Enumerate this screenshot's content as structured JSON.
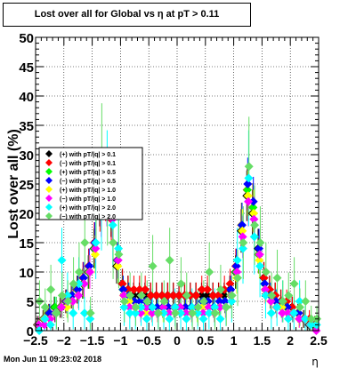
{
  "chart_data": {
    "type": "scatter",
    "title": "Lost over all for Global vs  η at pT > 0.11",
    "xlabel": "η",
    "ylabel": "Lost over all (%)",
    "xlim": [
      -2.5,
      2.5
    ],
    "ylim": [
      0,
      50
    ],
    "x_ticks": [
      "−2.5",
      "−2",
      "−1.5",
      "−1",
      "−0.5",
      "0",
      "0.5",
      "1",
      "1.5",
      "2",
      "2.5"
    ],
    "y_ticks": [
      "0",
      "5",
      "10",
      "15",
      "20",
      "25",
      "30",
      "35",
      "40",
      "45",
      "50"
    ],
    "grid": true,
    "legend_position": "left",
    "series": [
      {
        "name": "(+) with pT/|q| > 0.1",
        "color": "#000000",
        "x": [
          -2.45,
          -2.35,
          -2.25,
          -2.15,
          -2.05,
          -1.95,
          -1.85,
          -1.75,
          -1.65,
          -1.55,
          -1.45,
          -1.35,
          -1.25,
          -1.15,
          -1.05,
          -0.95,
          -0.85,
          -0.75,
          -0.65,
          -0.55,
          -0.45,
          -0.35,
          -0.25,
          -0.15,
          -0.05,
          0.05,
          0.15,
          0.25,
          0.35,
          0.45,
          0.55,
          0.65,
          0.75,
          0.85,
          0.95,
          1.05,
          1.15,
          1.25,
          1.35,
          1.45,
          1.55,
          1.65,
          1.75,
          1.85,
          1.95,
          2.05,
          2.15,
          2.25,
          2.35,
          2.45
        ],
        "y": [
          1,
          2,
          3,
          4,
          4,
          5,
          6,
          7,
          8,
          10,
          14,
          22,
          24,
          20,
          11,
          8,
          7,
          6,
          6,
          6,
          6,
          6,
          6,
          6,
          6,
          6,
          6,
          6,
          6,
          6,
          6,
          6,
          6,
          6,
          7,
          10,
          17,
          23,
          20,
          14,
          9,
          7,
          6,
          5,
          4,
          4,
          3,
          2,
          1,
          1
        ]
      },
      {
        "name": "(−) with pT/|q| > 0.1",
        "color": "#ff0000",
        "x": [
          -2.45,
          -2.35,
          -2.25,
          -2.15,
          -2.05,
          -1.95,
          -1.85,
          -1.75,
          -1.65,
          -1.55,
          -1.45,
          -1.35,
          -1.25,
          -1.15,
          -1.05,
          -0.95,
          -0.85,
          -0.75,
          -0.65,
          -0.55,
          -0.45,
          -0.35,
          -0.25,
          -0.15,
          -0.05,
          0.05,
          0.15,
          0.25,
          0.35,
          0.45,
          0.55,
          0.65,
          0.75,
          0.85,
          0.95,
          1.05,
          1.15,
          1.25,
          1.35,
          1.45,
          1.55,
          1.65,
          1.75,
          1.85,
          1.95,
          2.05,
          2.15,
          2.25,
          2.35,
          2.45
        ],
        "y": [
          1,
          2,
          3,
          3,
          4,
          5,
          6,
          7,
          9,
          11,
          15,
          21,
          23,
          19,
          12,
          8,
          7,
          7,
          7,
          7,
          6,
          6,
          6,
          6,
          6,
          6,
          6,
          6,
          6,
          7,
          7,
          6,
          6,
          7,
          8,
          11,
          18,
          24,
          21,
          13,
          9,
          7,
          6,
          5,
          5,
          4,
          3,
          2,
          2,
          1
        ]
      },
      {
        "name": "(+) with pT/|q| > 0.5",
        "color": "#00ff00",
        "x": [
          -2.45,
          -2.35,
          -2.25,
          -2.15,
          -2.05,
          -1.95,
          -1.85,
          -1.75,
          -1.65,
          -1.55,
          -1.45,
          -1.35,
          -1.25,
          -1.15,
          -1.05,
          -0.95,
          -0.85,
          -0.75,
          -0.65,
          -0.55,
          -0.45,
          -0.35,
          -0.25,
          -0.15,
          -0.05,
          0.05,
          0.15,
          0.25,
          0.35,
          0.45,
          0.55,
          0.65,
          0.75,
          0.85,
          0.95,
          1.05,
          1.15,
          1.25,
          1.35,
          1.45,
          1.55,
          1.65,
          1.75,
          1.85,
          1.95,
          2.05,
          2.15,
          2.25,
          2.35,
          2.45
        ],
        "y": [
          1,
          2,
          3,
          4,
          4,
          5,
          6,
          7,
          8,
          10,
          14,
          23,
          25,
          21,
          12,
          7,
          6,
          5,
          5,
          4,
          4,
          4,
          4,
          4,
          4,
          4,
          4,
          4,
          4,
          5,
          5,
          4,
          4,
          5,
          6,
          10,
          18,
          24,
          21,
          13,
          8,
          6,
          5,
          4,
          4,
          3,
          3,
          2,
          1,
          1
        ]
      },
      {
        "name": "(−) with pT/|q| > 0.5",
        "color": "#0000ff",
        "x": [
          -2.45,
          -2.35,
          -2.25,
          -2.15,
          -2.05,
          -1.95,
          -1.85,
          -1.75,
          -1.65,
          -1.55,
          -1.45,
          -1.35,
          -1.25,
          -1.15,
          -1.05,
          -0.95,
          -0.85,
          -0.75,
          -0.65,
          -0.55,
          -0.45,
          -0.35,
          -0.25,
          -0.15,
          -0.05,
          0.05,
          0.15,
          0.25,
          0.35,
          0.45,
          0.55,
          0.65,
          0.75,
          0.85,
          0.95,
          1.05,
          1.15,
          1.25,
          1.35,
          1.45,
          1.55,
          1.65,
          1.75,
          1.85,
          1.95,
          2.05,
          2.15,
          2.25,
          2.35,
          2.45
        ],
        "y": [
          1,
          2,
          3,
          3,
          4,
          5,
          6,
          7,
          9,
          11,
          15,
          22,
          24,
          20,
          12,
          7,
          6,
          5,
          5,
          5,
          4,
          4,
          4,
          4,
          4,
          4,
          4,
          4,
          4,
          5,
          5,
          4,
          5,
          5,
          7,
          11,
          18,
          25,
          22,
          14,
          8,
          6,
          5,
          4,
          4,
          3,
          3,
          2,
          1,
          1
        ]
      },
      {
        "name": "(+) with pT/|q| > 1.0",
        "color": "#ffff00",
        "x": [
          -2.45,
          -2.35,
          -2.25,
          -2.15,
          -2.05,
          -1.95,
          -1.85,
          -1.75,
          -1.65,
          -1.55,
          -1.45,
          -1.35,
          -1.25,
          -1.15,
          -1.05,
          -0.95,
          -0.85,
          -0.75,
          -0.65,
          -0.55,
          -0.45,
          -0.35,
          -0.25,
          -0.15,
          -0.05,
          0.05,
          0.15,
          0.25,
          0.35,
          0.45,
          0.55,
          0.65,
          0.75,
          0.85,
          0.95,
          1.05,
          1.15,
          1.25,
          1.35,
          1.45,
          1.55,
          1.65,
          1.75,
          1.85,
          1.95,
          2.05,
          2.15,
          2.25,
          2.35,
          2.45
        ],
        "y": [
          1,
          2,
          2,
          3,
          4,
          4,
          5,
          6,
          8,
          10,
          13,
          21,
          24,
          20,
          11,
          6,
          5,
          4,
          4,
          3,
          3,
          3,
          3,
          3,
          4,
          4,
          3,
          3,
          3,
          4,
          4,
          3,
          4,
          4,
          6,
          9,
          17,
          23,
          20,
          12,
          7,
          5,
          4,
          4,
          3,
          3,
          2,
          2,
          1,
          1
        ]
      },
      {
        "name": "(−) with pT/|q| > 1.0",
        "color": "#ff00ff",
        "x": [
          -2.45,
          -2.35,
          -2.25,
          -2.15,
          -2.05,
          -1.95,
          -1.85,
          -1.75,
          -1.65,
          -1.55,
          -1.45,
          -1.35,
          -1.25,
          -1.15,
          -1.05,
          -0.95,
          -0.85,
          -0.75,
          -0.65,
          -0.55,
          -0.45,
          -0.35,
          -0.25,
          -0.15,
          -0.05,
          0.05,
          0.15,
          0.25,
          0.35,
          0.45,
          0.55,
          0.65,
          0.75,
          0.85,
          0.95,
          1.05,
          1.15,
          1.25,
          1.35,
          1.45,
          1.55,
          1.65,
          1.75,
          1.85,
          1.95,
          2.05,
          2.15,
          2.25,
          2.35,
          2.45
        ],
        "y": [
          1,
          1,
          2,
          3,
          4,
          5,
          5,
          6,
          8,
          10,
          14,
          20,
          22,
          19,
          12,
          6,
          4,
          4,
          3,
          4,
          3,
          3,
          4,
          3,
          4,
          4,
          3,
          3,
          4,
          3,
          4,
          3,
          4,
          4,
          6,
          10,
          16,
          22,
          19,
          13,
          7,
          5,
          4,
          3,
          3,
          3,
          2,
          2,
          1,
          0
        ]
      },
      {
        "name": "(+) with pT/|q| > 2.0",
        "color": "#00ffff",
        "x": [
          -2.45,
          -2.35,
          -2.25,
          -2.15,
          -2.05,
          -1.95,
          -1.85,
          -1.75,
          -1.65,
          -1.55,
          -1.45,
          -1.35,
          -1.25,
          -1.15,
          -1.05,
          -0.95,
          -0.85,
          -0.75,
          -0.65,
          -0.55,
          -0.45,
          -0.35,
          -0.25,
          -0.15,
          -0.05,
          0.05,
          0.15,
          0.25,
          0.35,
          0.45,
          0.55,
          0.65,
          0.75,
          0.85,
          0.95,
          1.05,
          1.15,
          1.25,
          1.35,
          1.45,
          1.55,
          1.65,
          1.75,
          1.85,
          1.95,
          2.05,
          2.15,
          2.25,
          2.35,
          2.45
        ],
        "y": [
          0,
          2,
          1,
          3,
          12,
          6,
          3,
          8,
          3,
          2,
          15,
          21,
          26,
          18,
          14,
          4,
          3,
          3,
          4,
          2,
          4,
          3,
          3,
          2,
          4,
          3,
          2,
          4,
          3,
          2,
          3,
          4,
          2,
          4,
          5,
          12,
          14,
          26,
          16,
          11,
          6,
          3,
          4,
          5,
          2,
          3,
          5,
          2,
          1,
          1
        ]
      },
      {
        "name": "(−) with pT/|q| > 2.0",
        "color": "#66dd66",
        "x": [
          -2.45,
          -2.35,
          -2.25,
          -2.15,
          -2.05,
          -1.95,
          -1.85,
          -1.75,
          -1.65,
          -1.55,
          -1.45,
          -1.35,
          -1.25,
          -1.15,
          -1.05,
          -0.95,
          -0.85,
          -0.75,
          -0.65,
          -0.55,
          -0.45,
          -0.35,
          -0.25,
          -0.15,
          -0.05,
          0.05,
          0.15,
          0.25,
          0.35,
          0.45,
          0.55,
          0.65,
          0.75,
          0.85,
          0.95,
          1.05,
          1.15,
          1.25,
          1.35,
          1.45,
          1.55,
          1.65,
          1.75,
          1.85,
          1.95,
          2.05,
          2.15,
          2.25,
          2.35,
          2.45
        ],
        "y": [
          5,
          4,
          7,
          3,
          6,
          5,
          8,
          10,
          15,
          3,
          20,
          30,
          22,
          15,
          13,
          5,
          6,
          4,
          6,
          5,
          11,
          3,
          5,
          12,
          3,
          8,
          6,
          3,
          4,
          5,
          10,
          3,
          7,
          4,
          6,
          9,
          15,
          28,
          18,
          15,
          10,
          6,
          9,
          5,
          6,
          8,
          4,
          5,
          2,
          2
        ]
      }
    ]
  },
  "footer": {
    "timestamp": "Mon Jun 11 09:23:02 2018"
  }
}
